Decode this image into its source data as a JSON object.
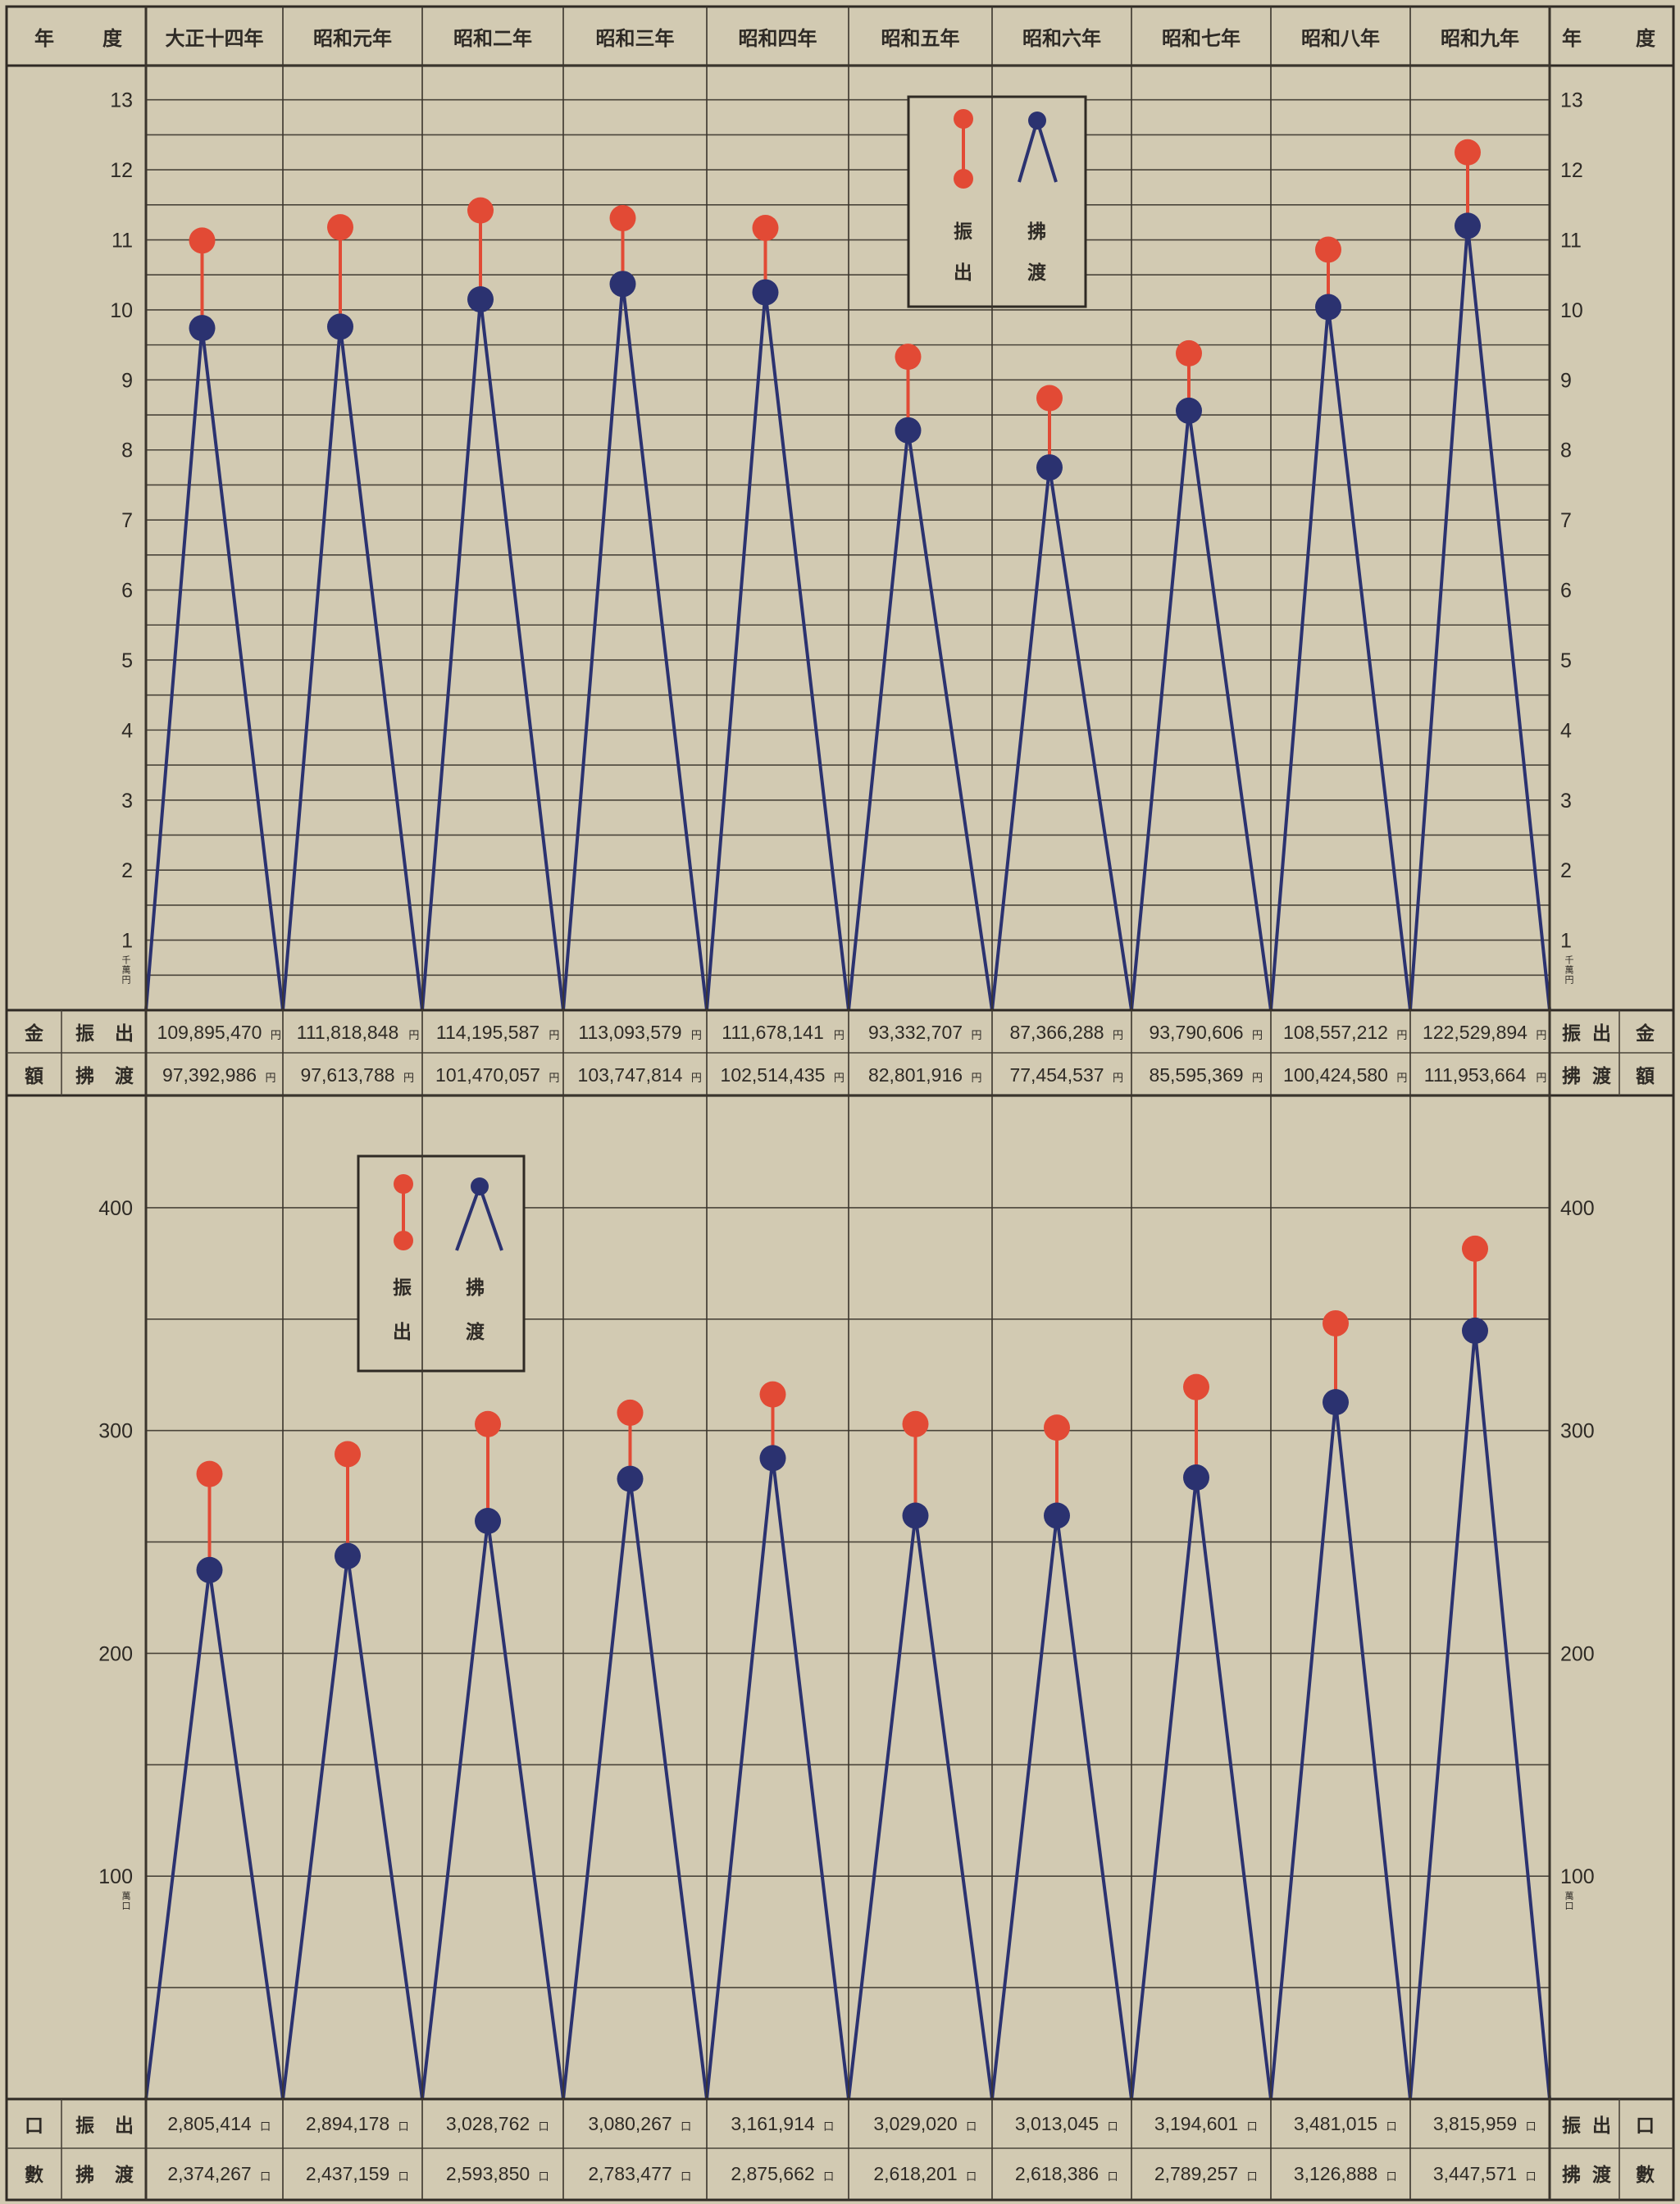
{
  "header": {
    "left_label": [
      "年",
      "度"
    ],
    "right_label": [
      "年",
      "度"
    ],
    "years": [
      "大正十四年",
      "昭和元年",
      "昭和二年",
      "昭和三年",
      "昭和四年",
      "昭和五年",
      "昭和六年",
      "昭和七年",
      "昭和八年",
      "昭和九年"
    ]
  },
  "colors": {
    "payout": "#e24a35",
    "transfer": "#2b3270",
    "paper": "#d2cab2"
  },
  "legend": {
    "payout": [
      "振",
      "出"
    ],
    "transfer": [
      "拂",
      "渡"
    ]
  },
  "amount_table": {
    "side_label": [
      "金",
      "額"
    ],
    "rows": [
      {
        "label": [
          "振",
          "出"
        ],
        "unit": "円",
        "values": [
          "109,895,470",
          "111,818,848",
          "114,195,587",
          "113,093,579",
          "111,678,141",
          "93,332,707",
          "87,366,288",
          "93,790,606",
          "108,557,212",
          "122,529,894"
        ]
      },
      {
        "label": [
          "拂",
          "渡"
        ],
        "unit": "円",
        "values": [
          "97,392,986",
          "97,613,788",
          "101,470,057",
          "103,747,814",
          "102,514,435",
          "82,801,916",
          "77,454,537",
          "85,595,369",
          "100,424,580",
          "111,953,664"
        ]
      }
    ]
  },
  "count_table": {
    "side_label": [
      "口",
      "數"
    ],
    "rows": [
      {
        "label": [
          "振",
          "出"
        ],
        "unit": "口",
        "values": [
          "2,805,414",
          "2,894,178",
          "3,028,762",
          "3,080,267",
          "3,161,914",
          "3,029,020",
          "3,013,045",
          "3,194,601",
          "3,481,015",
          "3,815,959"
        ]
      },
      {
        "label": [
          "拂",
          "渡"
        ],
        "unit": "口",
        "values": [
          "2,374,267",
          "2,437,159",
          "2,593,850",
          "2,783,477",
          "2,875,662",
          "2,618,201",
          "2,618,386",
          "2,789,257",
          "3,126,888",
          "3,447,571"
        ]
      }
    ]
  },
  "chart_data": [
    {
      "type": "line",
      "categories": [
        "大正十四年",
        "昭和元年",
        "昭和二年",
        "昭和三年",
        "昭和四年",
        "昭和五年",
        "昭和六年",
        "昭和七年",
        "昭和八年",
        "昭和九年"
      ],
      "ylim": [
        0,
        13.5
      ],
      "yticks": [
        1,
        2,
        3,
        4,
        5,
        6,
        7,
        8,
        9,
        10,
        11,
        12,
        13
      ],
      "y_unit": "千萬円",
      "series": [
        {
          "name": "振出",
          "values": [
            10.99,
            11.18,
            11.42,
            11.31,
            11.17,
            9.33,
            8.74,
            9.38,
            10.86,
            12.25
          ]
        },
        {
          "name": "拂渡",
          "values": [
            9.74,
            9.76,
            10.15,
            10.37,
            10.25,
            8.28,
            7.75,
            8.56,
            10.04,
            11.2
          ]
        }
      ]
    },
    {
      "type": "line",
      "categories": [
        "大正十四年",
        "昭和元年",
        "昭和二年",
        "昭和三年",
        "昭和四年",
        "昭和五年",
        "昭和六年",
        "昭和七年",
        "昭和八年",
        "昭和九年"
      ],
      "ylim": [
        0,
        450
      ],
      "yticks": [
        100,
        200,
        300,
        400
      ],
      "y_unit": "萬口",
      "series": [
        {
          "name": "振出",
          "values": [
            280.5,
            289.4,
            302.9,
            308.0,
            316.2,
            302.9,
            301.3,
            319.5,
            348.1,
            381.6
          ]
        },
        {
          "name": "拂渡",
          "values": [
            237.4,
            243.7,
            259.4,
            278.3,
            287.6,
            261.8,
            261.8,
            278.9,
            312.7,
            344.8
          ]
        }
      ]
    }
  ]
}
